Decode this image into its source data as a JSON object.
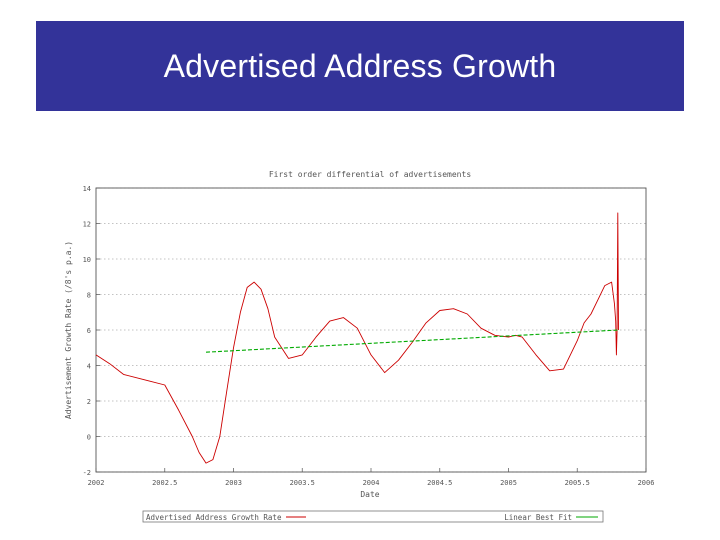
{
  "slide": {
    "title": "Advertised Address Growth"
  },
  "colors": {
    "header_bg": "#333399",
    "series_red": "#cc0000",
    "series_green": "#00aa00"
  },
  "chart_data": {
    "type": "line",
    "title": "First order differential of advertisements",
    "xlabel": "Date",
    "ylabel": "Advertisement Growth Rate (/8's p.a.)",
    "xlim": [
      2002,
      2006
    ],
    "ylim": [
      -2,
      14
    ],
    "x_ticks": [
      "2002",
      "2002.5",
      "2003",
      "2003.5",
      "2004",
      "2004.5",
      "2005",
      "2005.5",
      "2006"
    ],
    "y_ticks": [
      "-2",
      "0",
      "2",
      "4",
      "6",
      "8",
      "10",
      "12",
      "14"
    ],
    "grid": true,
    "legend": "bottom",
    "series": [
      {
        "name": "Advertised Address Growth Rate",
        "color": "#cc0000",
        "x": [
          2002.0,
          2002.1,
          2002.2,
          2002.35,
          2002.5,
          2002.6,
          2002.7,
          2002.75,
          2002.8,
          2002.85,
          2002.9,
          2002.95,
          2003.0,
          2003.05,
          2003.1,
          2003.15,
          2003.2,
          2003.25,
          2003.3,
          2003.4,
          2003.5,
          2003.6,
          2003.7,
          2003.8,
          2003.9,
          2004.0,
          2004.1,
          2004.2,
          2004.3,
          2004.4,
          2004.5,
          2004.6,
          2004.7,
          2004.8,
          2004.9,
          2005.0,
          2005.05,
          2005.1,
          2005.2,
          2005.3,
          2005.4,
          2005.5,
          2005.55,
          2005.6,
          2005.65,
          2005.7,
          2005.75,
          2005.77,
          2005.78,
          2005.785,
          2005.79,
          2005.795,
          2005.8
        ],
        "values": [
          4.6,
          4.1,
          3.5,
          3.2,
          2.9,
          1.5,
          0.0,
          -0.9,
          -1.5,
          -1.3,
          0.0,
          2.5,
          5.0,
          7.0,
          8.4,
          8.7,
          8.3,
          7.2,
          5.6,
          4.4,
          4.6,
          5.6,
          6.5,
          6.7,
          6.1,
          4.6,
          3.6,
          4.3,
          5.3,
          6.4,
          7.1,
          7.2,
          6.9,
          6.1,
          5.7,
          5.6,
          5.7,
          5.6,
          4.6,
          3.7,
          3.8,
          5.4,
          6.4,
          6.9,
          7.7,
          8.5,
          8.7,
          7.5,
          6.5,
          4.6,
          6.0,
          12.6,
          6.0
        ]
      },
      {
        "name": "Linear Best Fit",
        "color": "#00aa00",
        "x": [
          2002.8,
          2005.8
        ],
        "values": [
          4.75,
          6.0
        ]
      }
    ]
  }
}
